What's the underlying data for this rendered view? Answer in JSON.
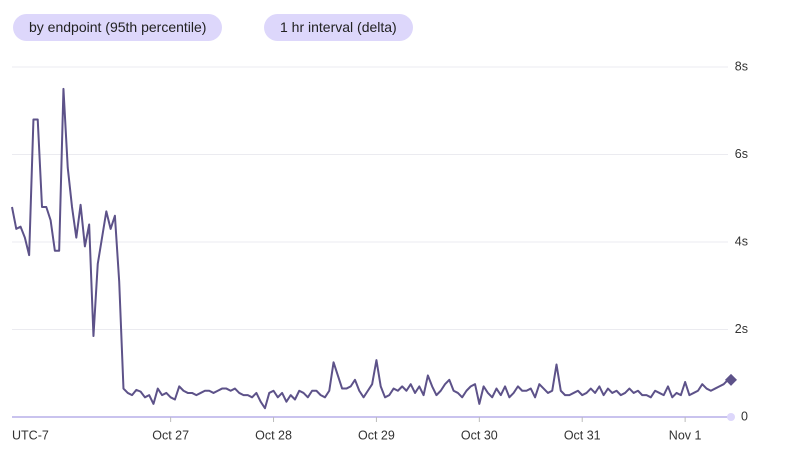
{
  "controls": [
    "by endpoint (95th percentile)",
    "1 hr interval (delta)"
  ],
  "chart_data": {
    "type": "line",
    "x_label": "UTC-7",
    "xlim": [
      0,
      167
    ],
    "xticks": [
      {
        "value": 37,
        "label": "Oct 27"
      },
      {
        "value": 61,
        "label": "Oct 28"
      },
      {
        "value": 85,
        "label": "Oct 29"
      },
      {
        "value": 109,
        "label": "Oct 30"
      },
      {
        "value": 133,
        "label": "Oct 31"
      },
      {
        "value": 157,
        "label": "Nov 1"
      }
    ],
    "ylim": [
      0,
      8
    ],
    "yticks": [
      0,
      {
        "value": 2,
        "label": "2s"
      },
      {
        "value": 4,
        "label": "4s"
      },
      {
        "value": 6,
        "label": "6s"
      },
      {
        "value": 8,
        "label": "8s"
      }
    ],
    "grid": true,
    "color": "#5d5289",
    "values": [
      4.8,
      4.3,
      4.35,
      4.1,
      3.7,
      6.8,
      6.8,
      4.8,
      4.8,
      4.5,
      3.8,
      3.8,
      7.5,
      5.7,
      4.8,
      4.1,
      4.85,
      3.9,
      4.4,
      1.85,
      3.5,
      4.1,
      4.7,
      4.3,
      4.6,
      3.1,
      0.65,
      0.55,
      0.5,
      0.62,
      0.58,
      0.45,
      0.5,
      0.3,
      0.65,
      0.5,
      0.55,
      0.45,
      0.4,
      0.7,
      0.6,
      0.55,
      0.55,
      0.5,
      0.55,
      0.6,
      0.6,
      0.55,
      0.6,
      0.65,
      0.65,
      0.6,
      0.65,
      0.55,
      0.5,
      0.5,
      0.45,
      0.55,
      0.35,
      0.2,
      0.55,
      0.6,
      0.45,
      0.55,
      0.35,
      0.5,
      0.4,
      0.6,
      0.55,
      0.45,
      0.6,
      0.6,
      0.5,
      0.45,
      0.6,
      1.25,
      0.95,
      0.65,
      0.65,
      0.7,
      0.85,
      0.6,
      0.45,
      0.6,
      0.75,
      1.3,
      0.7,
      0.45,
      0.5,
      0.65,
      0.6,
      0.7,
      0.6,
      0.75,
      0.55,
      0.7,
      0.5,
      0.95,
      0.7,
      0.5,
      0.6,
      0.75,
      0.85,
      0.6,
      0.55,
      0.45,
      0.6,
      0.7,
      0.75,
      0.3,
      0.7,
      0.55,
      0.45,
      0.65,
      0.5,
      0.7,
      0.45,
      0.55,
      0.7,
      0.6,
      0.6,
      0.65,
      0.45,
      0.75,
      0.65,
      0.55,
      0.6,
      1.2,
      0.6,
      0.5,
      0.5,
      0.55,
      0.6,
      0.5,
      0.55,
      0.65,
      0.55,
      0.7,
      0.5,
      0.65,
      0.55,
      0.6,
      0.5,
      0.55,
      0.65,
      0.55,
      0.6,
      0.5,
      0.5,
      0.45,
      0.6,
      0.55,
      0.5,
      0.7,
      0.45,
      0.55,
      0.5,
      0.8,
      0.5,
      0.55,
      0.6,
      0.75,
      0.65,
      0.6,
      0.65,
      0.7,
      0.75,
      0.85
    ]
  }
}
